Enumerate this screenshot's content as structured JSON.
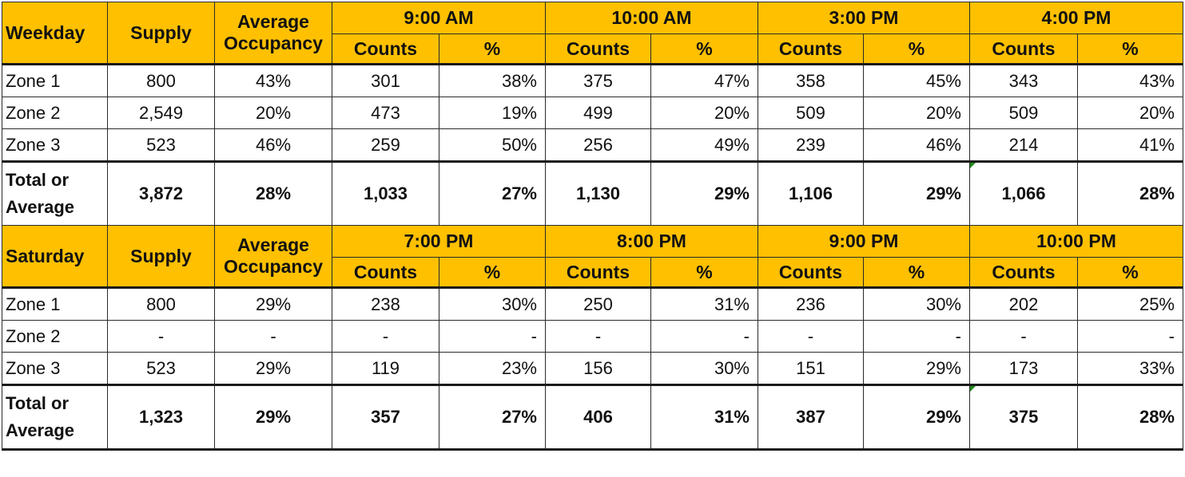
{
  "colors": {
    "header_bg": "#ffc000",
    "border": "#2a2a2a",
    "total_marker": "#1f8a1f"
  },
  "sections": [
    {
      "label": "Weekday",
      "supply_label": "Supply",
      "avg_occ_label": [
        "Average",
        "Occupancy"
      ],
      "times": [
        "9:00 AM",
        "10:00 AM",
        "3:00 PM",
        "4:00 PM"
      ],
      "sub_labels": {
        "counts": "Counts",
        "pct": "%"
      },
      "rows": [
        {
          "zone": "Zone 1",
          "supply": "800",
          "avg": "43%",
          "vals": [
            "301",
            "38%",
            "375",
            "47%",
            "358",
            "45%",
            "343",
            "43%"
          ]
        },
        {
          "zone": "Zone 2",
          "supply": "2,549",
          "avg": "20%",
          "vals": [
            "473",
            "19%",
            "499",
            "20%",
            "509",
            "20%",
            "509",
            "20%"
          ]
        },
        {
          "zone": "Zone 3",
          "supply": "523",
          "avg": "46%",
          "vals": [
            "259",
            "50%",
            "256",
            "49%",
            "239",
            "46%",
            "214",
            "41%"
          ]
        }
      ],
      "total": {
        "label": [
          "Total or",
          "Average"
        ],
        "supply": "3,872",
        "avg": "28%",
        "vals": [
          "1,033",
          "27%",
          "1,130",
          "29%",
          "1,106",
          "29%",
          "1,066",
          "28%"
        ]
      }
    },
    {
      "label": "Saturday",
      "supply_label": "Supply",
      "avg_occ_label": [
        "Average",
        "Occupancy"
      ],
      "times": [
        "7:00 PM",
        "8:00 PM",
        "9:00 PM",
        "10:00 PM"
      ],
      "sub_labels": {
        "counts": "Counts",
        "pct": "%"
      },
      "rows": [
        {
          "zone": "Zone 1",
          "supply": "800",
          "avg": "29%",
          "vals": [
            "238",
            "30%",
            "250",
            "31%",
            "236",
            "30%",
            "202",
            "25%"
          ]
        },
        {
          "zone": "Zone 2",
          "supply": "-",
          "avg": "-",
          "vals": [
            "-",
            "-",
            "-",
            "-",
            "-",
            "-",
            "-",
            "-"
          ]
        },
        {
          "zone": "Zone 3",
          "supply": "523",
          "avg": "29%",
          "vals": [
            "119",
            "23%",
            "156",
            "30%",
            "151",
            "29%",
            "173",
            "33%"
          ]
        }
      ],
      "total": {
        "label": [
          "Total or",
          "Average"
        ],
        "supply": "1,323",
        "avg": "29%",
        "vals": [
          "357",
          "27%",
          "406",
          "31%",
          "387",
          "29%",
          "375",
          "28%"
        ]
      }
    }
  ]
}
